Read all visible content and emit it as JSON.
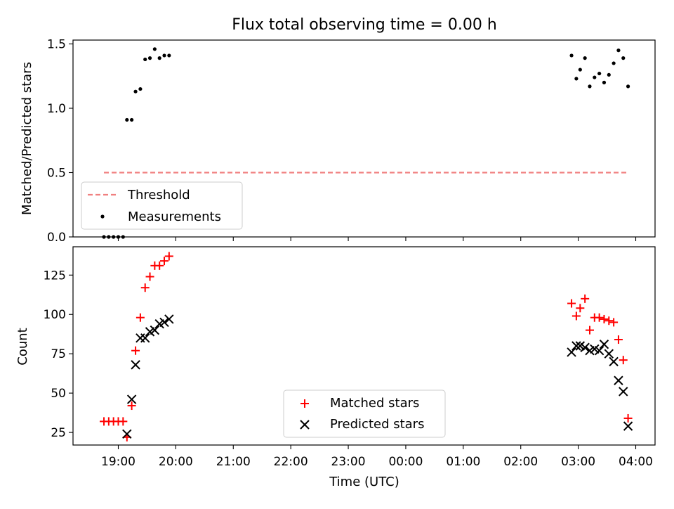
{
  "title": "Flux total observing time = 0.00 h",
  "xlabel": "Time (UTC)",
  "x_ticks": [
    "19:00",
    "20:00",
    "21:00",
    "22:00",
    "23:00",
    "00:00",
    "01:00",
    "02:00",
    "03:00",
    "04:00"
  ],
  "colors": {
    "threshold": "#f08080",
    "measurements": "#000000",
    "matched": "#ff0000",
    "predicted": "#000000"
  },
  "chart_data": [
    {
      "type": "scatter",
      "panel": "top",
      "ylabel": "Matched/Predicted stars",
      "ylim": [
        0,
        1.53
      ],
      "y_ticks": [
        "0.0",
        "0.5",
        "1.0",
        "1.5"
      ],
      "grid": false,
      "legend_position": "lower-left",
      "threshold": {
        "name": "Threshold",
        "value": 0.5,
        "x_start": "18:45",
        "x_end": "03:52",
        "style": "dashed"
      },
      "series": [
        {
          "name": "Measurements",
          "marker": "dot",
          "points": [
            {
              "x": "18:45",
              "y": 0.0
            },
            {
              "x": "18:50",
              "y": 0.0
            },
            {
              "x": "18:55",
              "y": 0.0
            },
            {
              "x": "19:00",
              "y": 0.0
            },
            {
              "x": "19:05",
              "y": 0.0
            },
            {
              "x": "19:09",
              "y": 0.91
            },
            {
              "x": "19:14",
              "y": 0.91
            },
            {
              "x": "19:18",
              "y": 1.13
            },
            {
              "x": "19:23",
              "y": 1.15
            },
            {
              "x": "19:28",
              "y": 1.38
            },
            {
              "x": "19:33",
              "y": 1.39
            },
            {
              "x": "19:38",
              "y": 1.46
            },
            {
              "x": "19:43",
              "y": 1.39
            },
            {
              "x": "19:48",
              "y": 1.41
            },
            {
              "x": "19:53",
              "y": 1.41
            },
            {
              "x": "02:53",
              "y": 1.41
            },
            {
              "x": "02:58",
              "y": 1.23
            },
            {
              "x": "03:02",
              "y": 1.3
            },
            {
              "x": "03:07",
              "y": 1.39
            },
            {
              "x": "03:12",
              "y": 1.17
            },
            {
              "x": "03:17",
              "y": 1.24
            },
            {
              "x": "03:22",
              "y": 1.27
            },
            {
              "x": "03:27",
              "y": 1.2
            },
            {
              "x": "03:32",
              "y": 1.26
            },
            {
              "x": "03:37",
              "y": 1.35
            },
            {
              "x": "03:42",
              "y": 1.45
            },
            {
              "x": "03:47",
              "y": 1.39
            },
            {
              "x": "03:52",
              "y": 1.17
            }
          ]
        }
      ]
    },
    {
      "type": "scatter",
      "panel": "bottom",
      "ylabel": "Count",
      "ylim": [
        17,
        143
      ],
      "y_ticks": [
        "25",
        "50",
        "75",
        "100",
        "125"
      ],
      "grid": false,
      "legend_position": "lower-center",
      "series": [
        {
          "name": "Matched stars",
          "marker": "plus",
          "points": [
            {
              "x": "18:45",
              "y": 32
            },
            {
              "x": "18:50",
              "y": 32
            },
            {
              "x": "18:55",
              "y": 32
            },
            {
              "x": "19:00",
              "y": 32
            },
            {
              "x": "19:05",
              "y": 32
            },
            {
              "x": "19:09",
              "y": 22
            },
            {
              "x": "19:14",
              "y": 42
            },
            {
              "x": "19:18",
              "y": 77
            },
            {
              "x": "19:23",
              "y": 98
            },
            {
              "x": "19:28",
              "y": 117
            },
            {
              "x": "19:33",
              "y": 124
            },
            {
              "x": "19:38",
              "y": 131
            },
            {
              "x": "19:43",
              "y": 131
            },
            {
              "x": "19:48",
              "y": 134
            },
            {
              "x": "19:53",
              "y": 137
            },
            {
              "x": "02:53",
              "y": 107
            },
            {
              "x": "02:58",
              "y": 99
            },
            {
              "x": "03:02",
              "y": 104
            },
            {
              "x": "03:07",
              "y": 110
            },
            {
              "x": "03:12",
              "y": 90
            },
            {
              "x": "03:17",
              "y": 98
            },
            {
              "x": "03:22",
              "y": 98
            },
            {
              "x": "03:27",
              "y": 97
            },
            {
              "x": "03:32",
              "y": 96
            },
            {
              "x": "03:37",
              "y": 95
            },
            {
              "x": "03:42",
              "y": 84
            },
            {
              "x": "03:47",
              "y": 71
            },
            {
              "x": "03:52",
              "y": 34
            }
          ]
        },
        {
          "name": "Predicted stars",
          "marker": "x",
          "points": [
            {
              "x": "19:09",
              "y": 24
            },
            {
              "x": "19:14",
              "y": 46
            },
            {
              "x": "19:18",
              "y": 68
            },
            {
              "x": "19:23",
              "y": 85
            },
            {
              "x": "19:28",
              "y": 85
            },
            {
              "x": "19:33",
              "y": 89
            },
            {
              "x": "19:38",
              "y": 90
            },
            {
              "x": "19:43",
              "y": 94
            },
            {
              "x": "19:48",
              "y": 95
            },
            {
              "x": "19:53",
              "y": 97
            },
            {
              "x": "02:53",
              "y": 76
            },
            {
              "x": "02:58",
              "y": 80
            },
            {
              "x": "03:02",
              "y": 80
            },
            {
              "x": "03:07",
              "y": 79
            },
            {
              "x": "03:12",
              "y": 77
            },
            {
              "x": "03:17",
              "y": 78
            },
            {
              "x": "03:22",
              "y": 77
            },
            {
              "x": "03:27",
              "y": 81
            },
            {
              "x": "03:32",
              "y": 75
            },
            {
              "x": "03:37",
              "y": 70
            },
            {
              "x": "03:42",
              "y": 58
            },
            {
              "x": "03:47",
              "y": 51
            },
            {
              "x": "03:52",
              "y": 29
            }
          ]
        }
      ]
    }
  ]
}
